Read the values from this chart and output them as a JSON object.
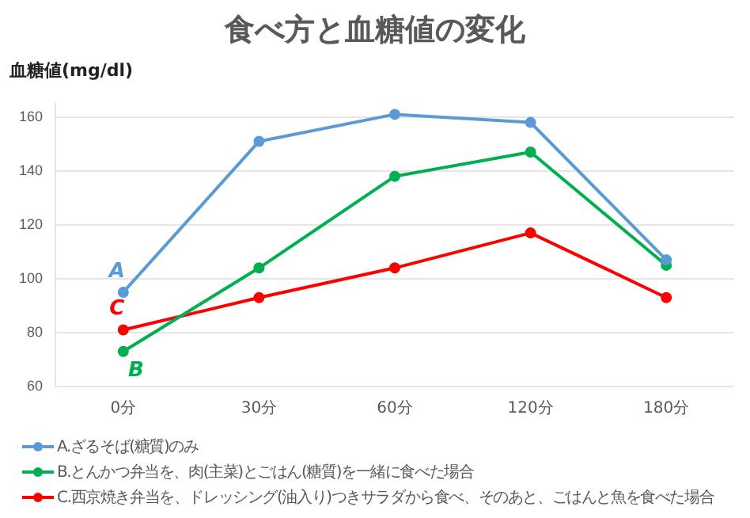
{
  "chart_data": {
    "type": "line",
    "title": "食べ方と血糖値の変化",
    "ylabel": "血糖値(mg/dl)",
    "categories": [
      "0分",
      "30分",
      "60分",
      "120分",
      "180分"
    ],
    "series": [
      {
        "name": "A.ざるそば(糖質)のみ",
        "color": "#5b9bd5",
        "values": [
          95,
          151,
          161,
          158,
          107
        ]
      },
      {
        "name": "B.とんかつ弁当を、肉(主菜)とごはん(糖質)を一緒に食べた場合",
        "color": "#00b050",
        "values": [
          73,
          104,
          138,
          147,
          105
        ]
      },
      {
        "name": "C.西京焼き弁当を、ドレッシング(油入り)つきサラダから食べ、そのあと、ごはんと魚を食べた場合",
        "color": "#ff0000",
        "values": [
          81,
          93,
          104,
          117,
          93
        ]
      }
    ],
    "annotations": [
      {
        "text": "A",
        "x": "0分",
        "y": 95
      },
      {
        "text": "B",
        "x": "0分",
        "y": 73
      },
      {
        "text": "C",
        "x": "0分",
        "y": 81
      }
    ],
    "ylim": [
      60,
      165
    ],
    "yticks": [
      60,
      80,
      100,
      120,
      140,
      160
    ],
    "grid": "y",
    "legend": "bottom",
    "marker": "circle",
    "line_style": "solid"
  }
}
